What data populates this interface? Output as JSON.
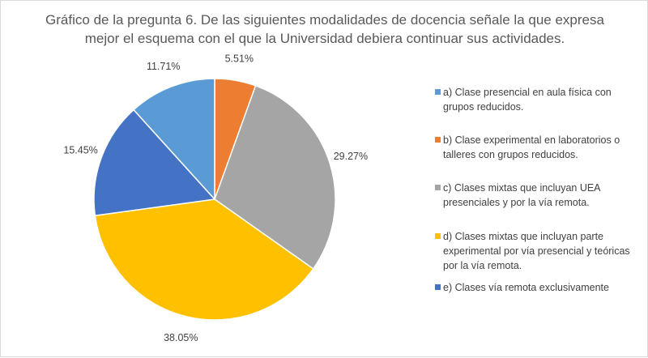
{
  "chart_data": {
    "type": "pie",
    "title": [
      "Gráfico de la pregunta 6. De las siguientes modalidades de docencia señale la que expresa",
      "mejor el esquema con el que la Universidad debiera continuar sus actividades."
    ],
    "slices": [
      {
        "label": "a) Clase presencial en aula física con grupos reducidos.",
        "value": 11.71,
        "value_label": "11.71%",
        "color": "#5B9BD5"
      },
      {
        "label": "b) Clase experimental en laboratorios o talleres con grupos reducidos.",
        "value": 5.51,
        "value_label": "5.51%",
        "color": "#ED7D31"
      },
      {
        "label": "c) Clases mixtas que incluyan UEA presenciales y por la vía remota.",
        "value": 29.27,
        "value_label": "29.27%",
        "color": "#A5A5A5"
      },
      {
        "label": "d) Clases mixtas que incluyan parte experimental por vía presencial y teóricas por la vía remota.",
        "value": 38.05,
        "value_label": "38.05%",
        "color": "#FFC000"
      },
      {
        "label": "e) Clases vía remota exclusivamente",
        "value": 15.45,
        "value_label": "15.45%",
        "color": "#4472C4"
      }
    ],
    "legend_lines": [
      [
        "a) Clase presencial en aula física con",
        "grupos reducidos."
      ],
      [
        "b) Clase experimental en laboratorios o",
        "talleres con grupos reducidos."
      ],
      [
        "c) Clases mixtas que incluyan UEA",
        "presenciales y por la vía remota."
      ],
      [
        "d) Clases mixtas que incluyan parte",
        "experimental por vía presencial y teóricas",
        "por la vía remota."
      ],
      [
        "e) Clases vía remota exclusivamente"
      ]
    ],
    "draw_order": [
      1,
      2,
      3,
      4,
      0
    ],
    "legend_position": "right"
  }
}
